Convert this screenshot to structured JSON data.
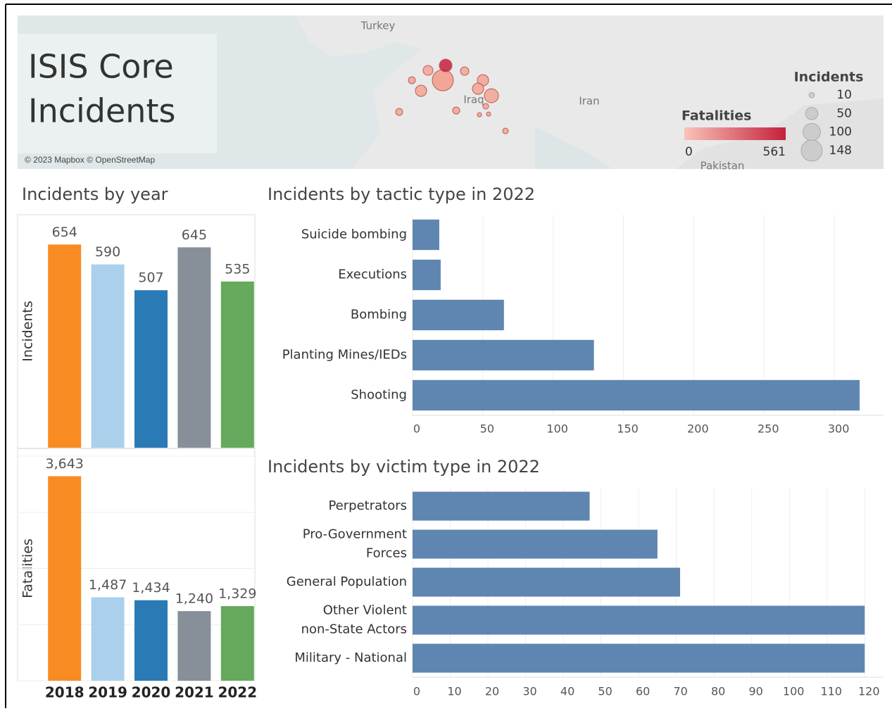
{
  "map": {
    "title": "ISIS Core\nIncidents",
    "attribution": "© 2023 Mapbox © OpenStreetMap",
    "places": [
      "Turkey",
      "Iraq",
      "Iran",
      "Pakistan"
    ],
    "fatalities_legend": {
      "title": "Fatalities",
      "min": 0,
      "max": 561,
      "colors": [
        "#f9c3b6",
        "#c4213c"
      ]
    },
    "size_legend": {
      "title": "Incidents",
      "values": [
        10,
        50,
        100,
        148
      ]
    }
  },
  "chart_data": [
    {
      "type": "bar_panels",
      "title": "Incidents by year",
      "categories": [
        "2018",
        "2019",
        "2020",
        "2021",
        "2022"
      ],
      "colors": [
        "#f98b23",
        "#abd0eb",
        "#2a7ab5",
        "#878f99",
        "#65a95c"
      ],
      "series": [
        {
          "name": "Incidents",
          "values": [
            654,
            590,
            507,
            645,
            535
          ],
          "ylim": [
            0,
            750
          ]
        },
        {
          "name": "Fatalities",
          "values": [
            3643,
            1487,
            1434,
            1240,
            1329
          ],
          "value_labels": [
            "3,643",
            "1,487",
            "1,434",
            "1,240",
            "1,329"
          ],
          "ylim": [
            0,
            4000
          ],
          "yticks": [
            0,
            1000,
            2000,
            3000,
            4000
          ],
          "grid": true,
          "tick_labels": false
        }
      ]
    },
    {
      "type": "hbar",
      "title": "Incidents by tactic type in 2022",
      "categories": [
        "Suicide bombing",
        "Executions",
        "Bombing",
        "Planting Mines/IEDs",
        "Shooting"
      ],
      "values": [
        19,
        20,
        65,
        129,
        318
      ],
      "color": "#5f86b1",
      "xlim": [
        0,
        335
      ],
      "xticks": [
        0,
        50,
        100,
        150,
        200,
        250,
        300
      ],
      "grid": true
    },
    {
      "type": "hbar",
      "title": "Incidents by victim type in 2022",
      "categories": [
        "Perpetrators",
        "Pro-Government\nForces",
        "General Population",
        "Other Violent\nnon-State Actors",
        "Military - National"
      ],
      "values": [
        47,
        65,
        71,
        120,
        120
      ],
      "color": "#5f86b1",
      "xlim": [
        0,
        125
      ],
      "xticks": [
        0,
        10,
        20,
        30,
        40,
        50,
        60,
        70,
        80,
        90,
        100,
        110,
        120
      ],
      "grid": true
    }
  ]
}
